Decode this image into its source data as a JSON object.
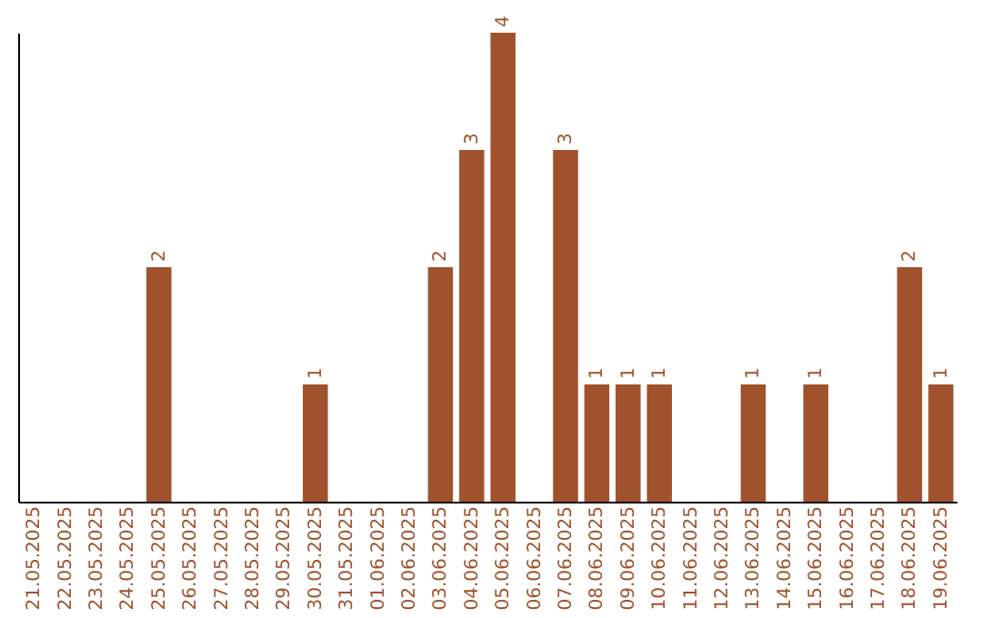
{
  "chart_data": {
    "type": "bar",
    "categories": [
      "21.05.2025",
      "22.05.2025",
      "23.05.2025",
      "24.05.2025",
      "25.05.2025",
      "26.05.2025",
      "27.05.2025",
      "28.05.2025",
      "29.05.2025",
      "30.05.2025",
      "31.05.2025",
      "01.06.2025",
      "02.06.2025",
      "03.06.2025",
      "04.06.2025",
      "05.06.2025",
      "06.06.2025",
      "07.06.2025",
      "08.06.2025",
      "09.06.2025",
      "10.06.2025",
      "11.06.2025",
      "12.06.2025",
      "13.06.2025",
      "14.06.2025",
      "15.06.2025",
      "16.06.2025",
      "17.06.2025",
      "18.06.2025",
      "19.06.2025"
    ],
    "values": [
      0,
      0,
      0,
      0,
      2,
      0,
      0,
      0,
      0,
      1,
      0,
      0,
      0,
      2,
      3,
      4,
      0,
      3,
      1,
      1,
      1,
      0,
      0,
      1,
      0,
      1,
      0,
      0,
      2,
      1
    ],
    "value_labels": [
      null,
      null,
      null,
      null,
      "2",
      null,
      null,
      null,
      null,
      "1",
      null,
      null,
      null,
      "2",
      "3",
      "4",
      null,
      "3",
      "1",
      "1",
      "1",
      null,
      null,
      "1",
      null,
      "1",
      null,
      null,
      "2",
      "1"
    ],
    "color": "#a0522d",
    "ylim": [
      0,
      4
    ],
    "tick_labels": "x",
    "grid": false
  }
}
